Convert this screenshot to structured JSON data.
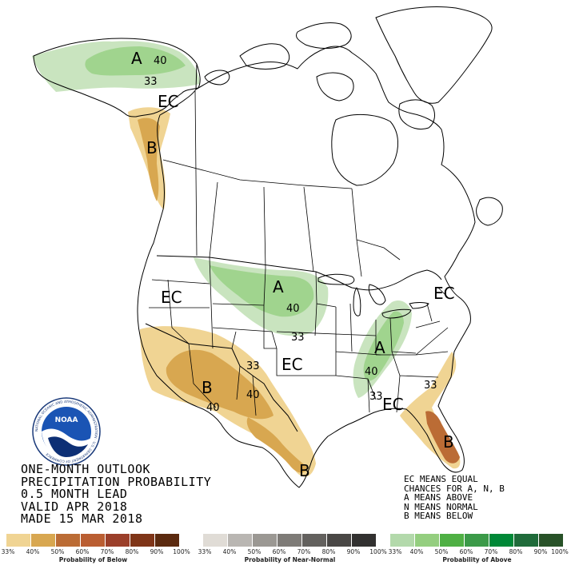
{
  "title_lines": [
    "ONE-MONTH OUTLOOK",
    "PRECIPITATION PROBABILITY",
    "0.5 MONTH LEAD",
    "VALID APR 2018",
    "MADE 15 MAR 2018"
  ],
  "key_lines": [
    "EC MEANS EQUAL",
    "CHANCES FOR A, N, B",
    "A MEANS ABOVE",
    "N MEANS NORMAL",
    "B MEANS BELOW"
  ],
  "noaa": {
    "acronym": "NOAA",
    "ring_text": "NATIONAL OCEANIC AND ATMOSPHERIC ADMINISTRATION · U.S. DEPARTMENT OF COMMERCE"
  },
  "map_labels": {
    "alaska_A": "A",
    "alaska_40": "40",
    "alaska_33": "33",
    "alaska_EC": "EC",
    "bc_B": "B",
    "west_EC": "EC",
    "plains_A": "A",
    "plains_40": "40",
    "plains_33": "33",
    "southwest_B": "B",
    "southwest_40_left": "40",
    "southwest_40_right": "40",
    "southwest_33": "33",
    "central_EC": "EC",
    "ohio_A": "A",
    "ohio_40": "40",
    "ohio_33": "33",
    "southeast_EC": "EC",
    "southeast_33": "33",
    "florida_B": "B",
    "texas_B": "B",
    "northeast_EC": "EC"
  },
  "legends": [
    {
      "caption": "Probability of Below",
      "colors": [
        "#f0d493",
        "#d8a750",
        "#bb6c35",
        "#ba5e32",
        "#9b3f2a",
        "#7f3518",
        "#5b2a0f"
      ],
      "ticks": [
        "33%",
        "40%",
        "50%",
        "60%",
        "70%",
        "80%",
        "90%",
        "100%"
      ]
    },
    {
      "caption": "Probability of Near-Normal",
      "colors": [
        "#e0dcd6",
        "#b9b6b2",
        "#9b9893",
        "#7e7b77",
        "#63615e",
        "#494745",
        "#323130"
      ],
      "ticks": [
        "33%",
        "40%",
        "50%",
        "60%",
        "70%",
        "80%",
        "90%",
        "100%"
      ]
    },
    {
      "caption": "Probability of Above",
      "colors": [
        "#b3d9ab",
        "#94ce7f",
        "#4fb044",
        "#3b9a48",
        "#008837",
        "#1f6b3a",
        "#285228"
      ],
      "ticks": [
        "33%",
        "40%",
        "50%",
        "60%",
        "70%",
        "80%",
        "90%",
        "100%"
      ]
    }
  ]
}
